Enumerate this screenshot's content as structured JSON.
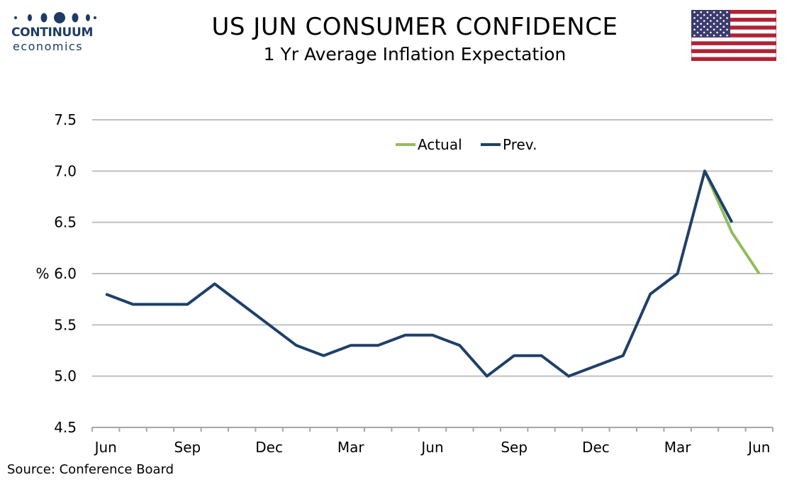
{
  "header": {
    "logo_name": "CONTINUUM",
    "logo_sub": "economics",
    "title": "US JUN CONSUMER CONFIDENCE",
    "subtitle": "1 Yr Average Inflation Expectation"
  },
  "source": "Source: Conference Board",
  "colors": {
    "actual": "#92bc5e",
    "prev": "#1f4068",
    "grid": "#bfbfbf",
    "logo": "#1f3b63"
  },
  "chart_data": {
    "type": "line",
    "ylabel": "%",
    "ylim": [
      4.5,
      7.5
    ],
    "yticks": [
      "4.5",
      "5.0",
      "5.5",
      "6.0",
      "6.5",
      "7.0",
      "7.5"
    ],
    "categories": [
      "Jun",
      "Jul",
      "Aug",
      "Sep",
      "Oct",
      "Nov",
      "Dec",
      "Jan",
      "Feb",
      "Mar",
      "Apr",
      "May",
      "Jun",
      "Jul",
      "Aug",
      "Sep",
      "Oct",
      "Nov",
      "Dec",
      "Jan",
      "Feb",
      "Mar",
      "Apr",
      "May",
      "Jun"
    ],
    "xtick_labels": [
      "Jun",
      "",
      "",
      "Sep",
      "",
      "",
      "Dec",
      "",
      "",
      "Mar",
      "",
      "",
      "Jun",
      "",
      "",
      "Sep",
      "",
      "",
      "Dec",
      "",
      "",
      "Mar",
      "",
      "",
      "Jun"
    ],
    "grid": true,
    "legend_position": "top-right",
    "series": [
      {
        "name": "Actual",
        "color": "#92bc5e",
        "values": [
          null,
          null,
          null,
          null,
          null,
          null,
          null,
          null,
          null,
          null,
          null,
          null,
          null,
          null,
          null,
          null,
          null,
          null,
          null,
          null,
          null,
          null,
          7.0,
          6.4,
          6.0
        ]
      },
      {
        "name": "Prev.",
        "color": "#1f4068",
        "values": [
          5.8,
          5.7,
          5.7,
          5.7,
          5.9,
          5.7,
          5.5,
          5.3,
          5.2,
          5.3,
          5.3,
          5.4,
          5.4,
          5.3,
          5.0,
          5.2,
          5.2,
          5.0,
          5.1,
          5.2,
          5.8,
          6.0,
          7.0,
          6.5,
          null
        ]
      }
    ]
  }
}
